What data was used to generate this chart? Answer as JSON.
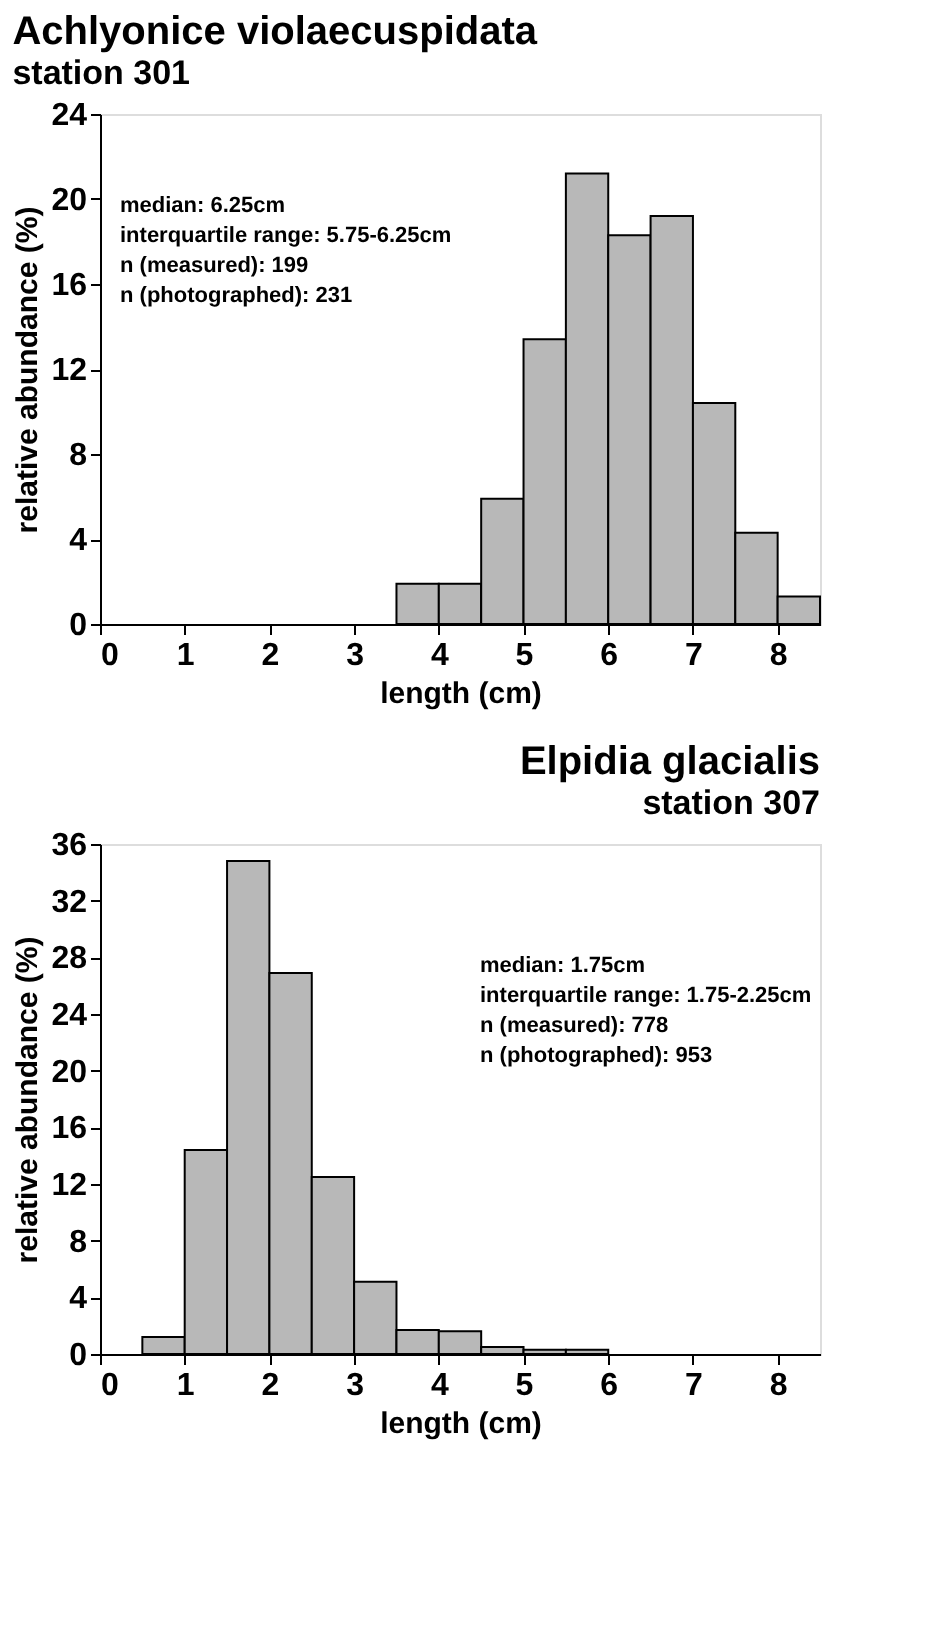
{
  "chart_data": [
    {
      "type": "histogram",
      "title": "Achlyonice violaecuspidata",
      "subtitle": "station 301",
      "xlabel": "length (cm)",
      "ylabel": "relative abundance (%)",
      "bins": [
        3.5,
        4,
        4.5,
        5,
        5.5,
        6,
        6.5,
        7,
        7.5,
        8,
        8.5
      ],
      "values": [
        1.9,
        1.9,
        5.9,
        13.4,
        21.2,
        18.3,
        19.2,
        10.4,
        4.3,
        1.3
      ],
      "color": "#b8b8b8",
      "xlim": [
        0,
        8.5
      ],
      "xticks": [
        0,
        1,
        2,
        3,
        4,
        5,
        6,
        7,
        8
      ],
      "ylim": [
        0,
        24
      ],
      "yticks": [
        0,
        4,
        8,
        12,
        16,
        20,
        24
      ],
      "grid": false,
      "annotations": [
        "median: 6.25cm",
        "interquartile range: 5.75-6.25cm",
        "n (measured): 199",
        "n (photographed): 231"
      ]
    },
    {
      "type": "histogram",
      "title": "Elpidia glacialis",
      "subtitle": "station 307",
      "xlabel": "length (cm)",
      "ylabel": "relative abundance (%)",
      "bins": [
        0.5,
        1,
        1.5,
        2,
        2.5,
        3,
        3.5,
        4,
        4.5,
        5,
        5.5,
        6
      ],
      "values": [
        1.2,
        14.4,
        34.8,
        26.9,
        12.5,
        5.1,
        1.7,
        1.6,
        0.5,
        0.3,
        0.3
      ],
      "color": "#b8b8b8",
      "xlim": [
        0,
        8.5
      ],
      "xticks": [
        0,
        1,
        2,
        3,
        4,
        5,
        6,
        7,
        8
      ],
      "ylim": [
        0,
        36
      ],
      "yticks": [
        0,
        4,
        8,
        12,
        16,
        20,
        24,
        28,
        32,
        36
      ],
      "grid": false,
      "annotations": [
        "median: 1.75cm",
        "interquartile range: 1.75-2.25cm",
        "n (measured): 778",
        "n (photographed): 953"
      ]
    }
  ]
}
